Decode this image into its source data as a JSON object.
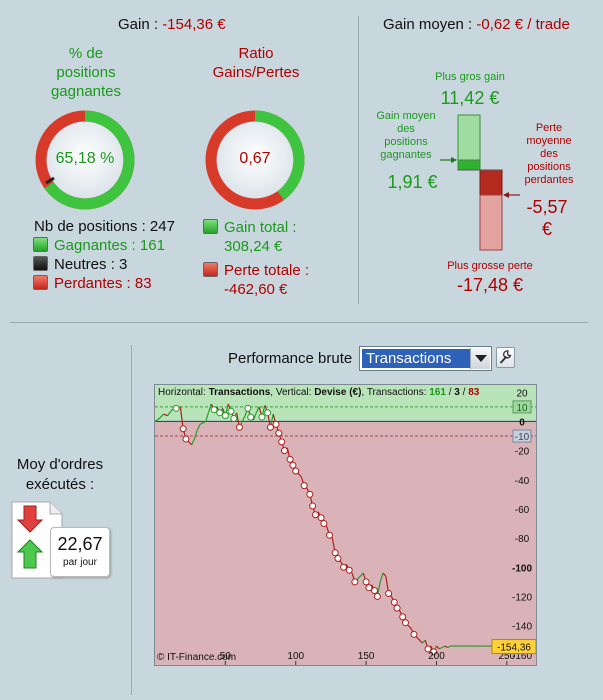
{
  "gain": {
    "label": "Gain : ",
    "value": "-154,36 €"
  },
  "gain_moyen": {
    "label": "Gain moyen : ",
    "value": "-0,62 € / trade"
  },
  "pct_gagnantes": {
    "title_l1": "% de",
    "title_l2": "positions",
    "title_l3": "gagnantes",
    "value": "65,18 %",
    "fraction": 0.6518
  },
  "ratio": {
    "title_l1": "Ratio",
    "title_l2": "Gains/Pertes",
    "value": "0,67",
    "fraction": 0.4
  },
  "positions": {
    "total_label": "Nb de positions : 247",
    "gagnantes": "Gagnantes : 161",
    "neutres": "Neutres : 3",
    "perdantes": "Perdantes : 83"
  },
  "totals": {
    "gain_total_label": "Gain total :",
    "gain_total_value": "308,24 €",
    "perte_totale_label": "Perte totale :",
    "perte_totale_value": "-462,60 €"
  },
  "range": {
    "plus_gros_gain_label": "Plus gros gain",
    "plus_gros_gain_value": "11,42 €",
    "gain_moyen_label_l1": "Gain moyen",
    "gain_moyen_label_l2": "des",
    "gain_moyen_label_l3": "positions",
    "gain_moyen_label_l4": "gagnantes",
    "gain_moyen_value": "1,91 €",
    "perte_moyenne_label_l1": "Perte",
    "perte_moyenne_label_l2": "moyenne",
    "perte_moyenne_label_l3": "des",
    "perte_moyenne_label_l4": "positions",
    "perte_moyenne_label_l5": "perdantes",
    "perte_moyenne_value_l1": "-5,57",
    "perte_moyenne_value_l2": "€",
    "plus_grosse_perte_label": "Plus grosse perte",
    "plus_grosse_perte_value": "-17,48 €"
  },
  "performance": {
    "label": "Performance brute",
    "selected": "Transactions"
  },
  "ordres": {
    "label_l1": "Moy d'ordres",
    "label_l2": "exécutés :",
    "value": "22,67",
    "unit": "par jour"
  },
  "colors": {
    "green": "#1a9a1a",
    "red": "#b00000",
    "ring_green": "#3ec43e",
    "ring_red": "#d83a2a",
    "chart_green_zone": "#b9e4b9",
    "chart_red_zone": "#d9b3b7",
    "zero_line": "#2a3fb0"
  },
  "chart_data": {
    "type": "line",
    "header_prefix": "Horizontal: ",
    "header_h": "Transactions",
    "header_mid": ", Vertical: ",
    "header_v": "Devise (€)",
    "header_mid2": ", Transactions: ",
    "header_win": "161",
    "header_sep1": " / ",
    "header_neutral": "3",
    "header_sep2": " / ",
    "header_loss": "83",
    "credit": "© IT-Finance.com",
    "last_value_label": "-154,36",
    "xlim": [
      0,
      270
    ],
    "ylim": [
      -167,
      25
    ],
    "x_ticks": [
      50,
      100,
      150,
      200,
      250
    ],
    "y_ticks": [
      20,
      0,
      -20,
      -40,
      -60,
      -80,
      -100,
      -120,
      -140,
      -160
    ],
    "y_tick_labels": [
      "20",
      "0",
      "-20",
      "-40",
      "-60",
      "-80",
      "-100",
      "-120",
      "-140",
      "-160"
    ],
    "band_upper": 10,
    "band_lower": -10,
    "band_upper_label": "10",
    "band_lower_label": "-10",
    "series": [
      {
        "x": [
          0,
          3,
          6,
          9,
          12,
          15,
          18,
          20,
          22,
          24,
          26,
          28,
          30,
          32,
          34,
          36,
          38,
          40,
          42,
          44,
          46,
          48,
          50,
          52,
          54,
          56,
          58,
          60,
          62,
          64,
          66,
          68,
          70,
          72,
          74,
          76,
          78,
          80,
          82,
          84,
          86,
          88,
          90,
          92,
          94,
          96,
          98,
          100,
          102,
          104,
          106,
          108,
          110,
          112,
          114,
          116,
          118,
          120,
          122,
          124,
          126,
          128,
          130,
          132,
          134,
          136,
          138,
          140,
          142,
          144,
          146,
          148,
          150,
          152,
          154,
          156,
          158,
          160,
          162,
          164,
          166,
          168,
          170,
          172,
          174,
          176,
          178,
          180,
          182,
          184,
          186,
          188,
          190,
          192,
          194,
          196,
          198,
          200,
          202,
          204,
          206,
          208,
          210,
          212,
          214,
          216,
          218,
          220,
          222,
          224,
          226,
          228,
          230,
          232,
          234,
          236,
          238,
          240,
          242,
          244,
          246,
          248,
          250,
          252
        ],
        "y": [
          0,
          2,
          5,
          4,
          8,
          9,
          10,
          -5,
          -12,
          -14,
          -16,
          -12,
          -6,
          -2,
          -1,
          0,
          6,
          12,
          8,
          10,
          6,
          9,
          4,
          12,
          7,
          2,
          6,
          -4,
          0,
          4,
          9,
          3,
          1,
          6,
          10,
          3,
          11,
          6,
          -4,
          5,
          -2,
          -8,
          -14,
          -20,
          -18,
          -26,
          -30,
          -34,
          -36,
          -38,
          -44,
          -46,
          -50,
          -58,
          -64,
          -62,
          -66,
          -70,
          -72,
          -78,
          -80,
          -90,
          -94,
          -96,
          -100,
          -98,
          -102,
          -104,
          -110,
          -108,
          -106,
          -104,
          -110,
          -114,
          -112,
          -116,
          -120,
          -110,
          -104,
          -106,
          -118,
          -120,
          -124,
          -128,
          -130,
          -134,
          -138,
          -140,
          -142,
          -146,
          -148,
          -150,
          -152,
          -150,
          -156,
          -154,
          -158,
          -154,
          -156,
          -155,
          -154,
          -155,
          -154,
          -154,
          -154,
          -154,
          -154,
          -154,
          -154,
          -154,
          -154,
          -154,
          -154,
          -154,
          -154,
          -154,
          -154,
          -154,
          -154,
          -154,
          -154,
          -154,
          -154,
          -154
        ]
      }
    ]
  }
}
